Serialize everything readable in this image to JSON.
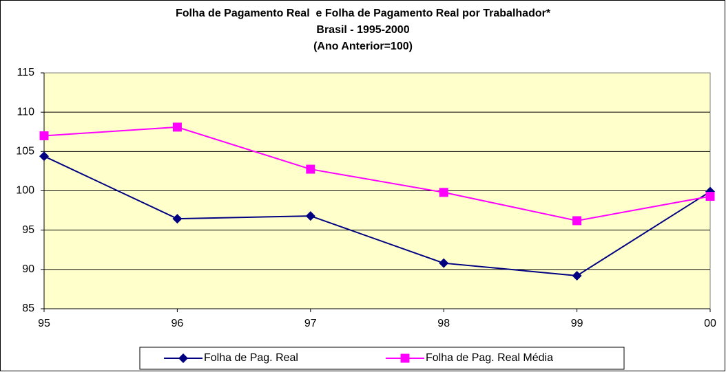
{
  "chart_data": {
    "type": "line",
    "title": [
      "Folha de Pagamento Real  e Folha de Pagamento Real por Trabalhador*",
      "Brasil - 1995-2000",
      "(Ano Anterior=100)"
    ],
    "categories": [
      "95",
      "96",
      "97",
      "98",
      "99",
      "00"
    ],
    "series": [
      {
        "name": "Folha de Pag. Real",
        "color": "#000080",
        "marker": "diamond",
        "values": [
          104.4,
          96.45,
          96.8,
          90.8,
          89.2,
          99.9
        ]
      },
      {
        "name": "Folha de Pag. Real Média",
        "color": "#ff00ff",
        "marker": "square",
        "values": [
          107.0,
          108.1,
          102.75,
          99.8,
          96.2,
          99.3
        ]
      }
    ],
    "ylim": [
      85,
      115
    ],
    "yticks": [
      85,
      90,
      95,
      100,
      105,
      110,
      115
    ],
    "grid": true,
    "legend": "bottom",
    "plot_background": "#ffffcc"
  }
}
